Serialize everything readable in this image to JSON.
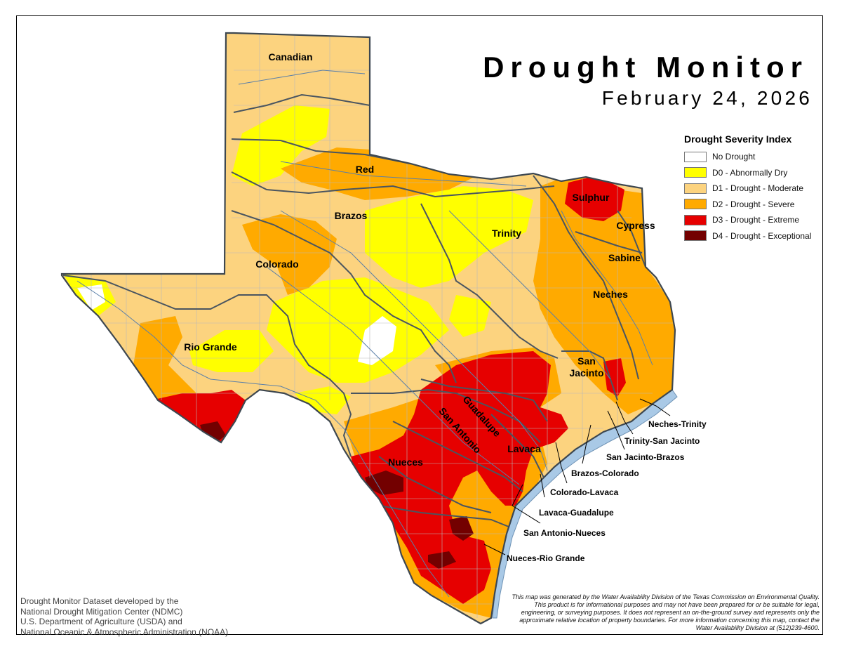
{
  "map": {
    "title": "Drought Monitor",
    "date": "February 24, 2026"
  },
  "legend": {
    "title": "Drought Severity Index",
    "items": [
      {
        "label": "No Drought",
        "color": "#ffffff"
      },
      {
        "label": "D0 - Abnormally Dry",
        "color": "#ffff00"
      },
      {
        "label": "D1 - Drought - Moderate",
        "color": "#fcd37f"
      },
      {
        "label": "D2 - Drought - Severe",
        "color": "#ffaa00"
      },
      {
        "label": "D3 - Drought - Extreme",
        "color": "#e60000"
      },
      {
        "label": "D4 - Drought - Exceptional",
        "color": "#730000"
      }
    ]
  },
  "basins": {
    "canadian": "Canadian",
    "red": "Red",
    "brazos": "Brazos",
    "colorado": "Colorado",
    "rio_grande": "Rio Grande",
    "trinity": "Trinity",
    "sulphur": "Sulphur",
    "cypress": "Cypress",
    "sabine": "Sabine",
    "neches": "Neches",
    "san_jacinto_1": "San",
    "san_jacinto_2": "Jacinto",
    "guadalupe": "Guadalupe",
    "san_antonio": "San Antonio",
    "lavaca": "Lavaca",
    "nueces": "Nueces"
  },
  "coastal_basins": {
    "neches_trinity": "Neches-Trinity",
    "trinity_san_jacinto": "Trinity-San Jacinto",
    "san_jacinto_brazos": "San Jacinto-Brazos",
    "brazos_colorado": "Brazos-Colorado",
    "colorado_lavaca": "Colorado-Lavaca",
    "lavaca_guadalupe": "Lavaca-Guadalupe",
    "san_antonio_nueces": "San Antonio-Nueces",
    "nueces_rio_grande": "Nueces-Rio Grande"
  },
  "credit": {
    "line1": "Drought Monitor Dataset developed by the",
    "line2": "National Drought Mitigation Center (NDMC)",
    "line3": "U.S. Department of Agriculture (USDA) and",
    "line4": "National Oceanic & Atmospheric Administration (NOAA)"
  },
  "disclaimer": "This map was generated by the Water Availability Division of the Texas Commission on Environmental Quality. This product is for informational purposes and may not have been prepared for or be suitable for legal, engineering, or surveying purposes. It does not represent an on-the-ground survey and represents only the approximate relative location of property boundaries. For more information concerning this map, contact the Water Availability Division at (512)239-4600."
}
